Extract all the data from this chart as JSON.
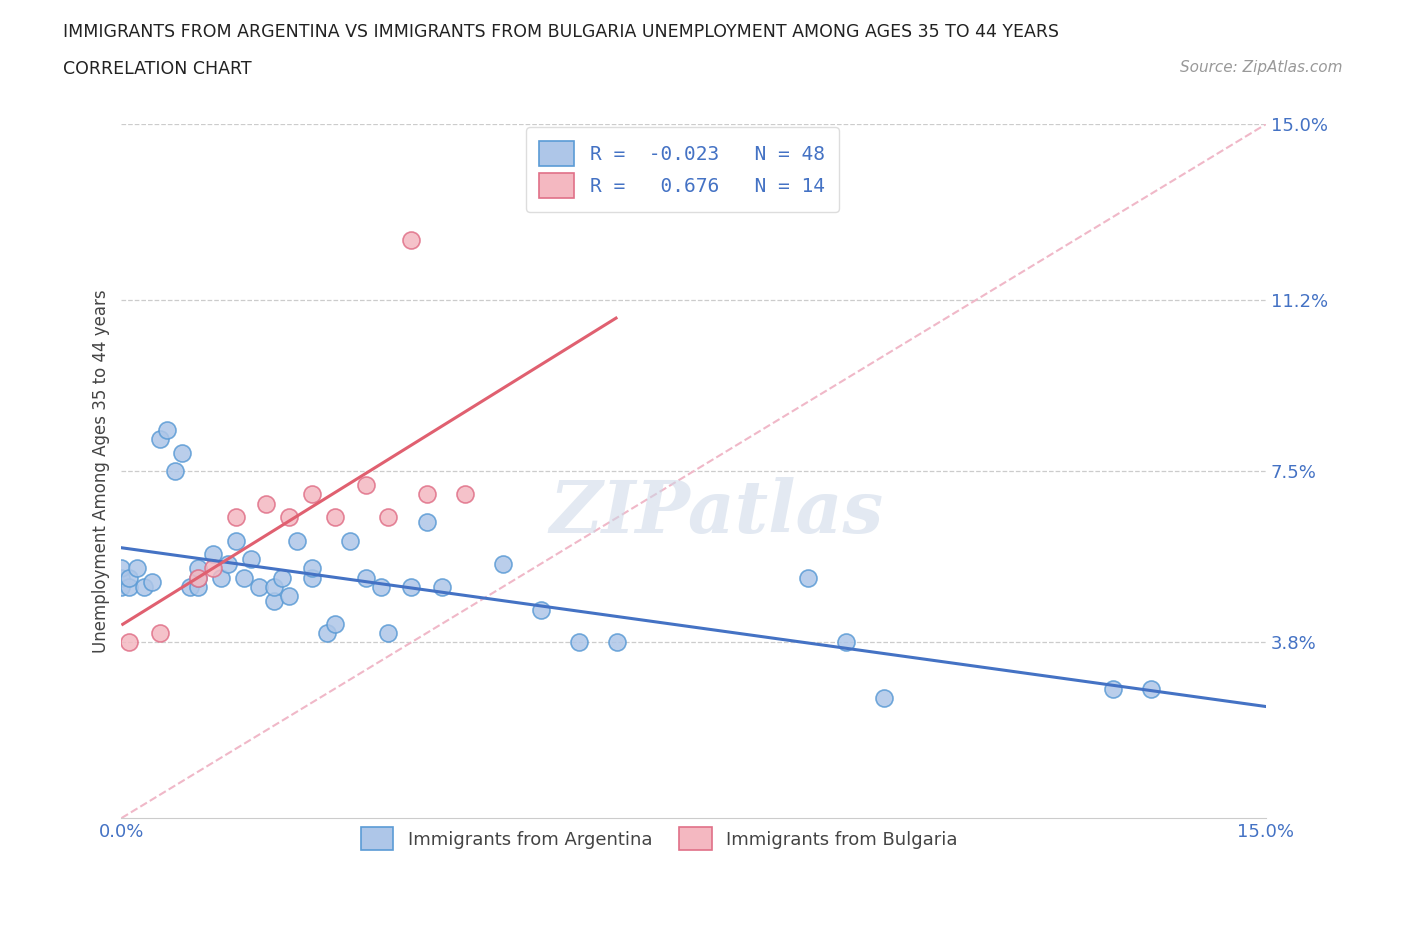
{
  "title_line1": "IMMIGRANTS FROM ARGENTINA VS IMMIGRANTS FROM BULGARIA UNEMPLOYMENT AMONG AGES 35 TO 44 YEARS",
  "title_line2": "CORRELATION CHART",
  "source_text": "Source: ZipAtlas.com",
  "ylabel": "Unemployment Among Ages 35 to 44 years",
  "xmin": 0.0,
  "xmax": 0.15,
  "ymin": 0.0,
  "ymax": 0.15,
  "yticks": [
    0.038,
    0.075,
    0.112,
    0.15
  ],
  "ytick_labels": [
    "3.8%",
    "7.5%",
    "11.2%",
    "15.0%"
  ],
  "xtick_labels": [
    "0.0%",
    "15.0%"
  ],
  "xticks": [
    0.0,
    0.15
  ],
  "argentina_color": "#aec6e8",
  "argentina_edge": "#5b9bd5",
  "bulgaria_color": "#f4b8c1",
  "bulgaria_edge": "#e07088",
  "argentina_R": -0.023,
  "argentina_N": 48,
  "bulgaria_R": 0.676,
  "bulgaria_N": 14,
  "argentina_trend_color": "#4472c4",
  "bulgaria_trend_color": "#e06070",
  "diagonal_color": "#f0b8c8",
  "watermark": "ZIPatlas",
  "argentina_label": "Immigrants from Argentina",
  "bulgaria_label": "Immigrants from Bulgaria",
  "argentina_x": [
    0.0,
    0.0,
    0.0,
    0.001,
    0.001,
    0.002,
    0.003,
    0.004,
    0.005,
    0.006,
    0.007,
    0.008,
    0.009,
    0.01,
    0.01,
    0.01,
    0.012,
    0.013,
    0.014,
    0.015,
    0.016,
    0.017,
    0.018,
    0.02,
    0.02,
    0.021,
    0.022,
    0.023,
    0.025,
    0.025,
    0.027,
    0.028,
    0.03,
    0.032,
    0.034,
    0.035,
    0.038,
    0.04,
    0.042,
    0.05,
    0.055,
    0.06,
    0.065,
    0.09,
    0.095,
    0.1,
    0.13,
    0.135
  ],
  "argentina_y": [
    0.05,
    0.052,
    0.054,
    0.05,
    0.052,
    0.054,
    0.05,
    0.051,
    0.082,
    0.084,
    0.075,
    0.079,
    0.05,
    0.05,
    0.052,
    0.054,
    0.057,
    0.052,
    0.055,
    0.06,
    0.052,
    0.056,
    0.05,
    0.047,
    0.05,
    0.052,
    0.048,
    0.06,
    0.052,
    0.054,
    0.04,
    0.042,
    0.06,
    0.052,
    0.05,
    0.04,
    0.05,
    0.064,
    0.05,
    0.055,
    0.045,
    0.038,
    0.038,
    0.052,
    0.038,
    0.026,
    0.028,
    0.028
  ],
  "bulgaria_x": [
    0.001,
    0.005,
    0.01,
    0.012,
    0.015,
    0.019,
    0.022,
    0.025,
    0.028,
    0.032,
    0.035,
    0.038,
    0.04,
    0.045
  ],
  "bulgaria_y": [
    0.038,
    0.04,
    0.052,
    0.054,
    0.065,
    0.068,
    0.065,
    0.07,
    0.065,
    0.072,
    0.065,
    0.125,
    0.07,
    0.07
  ]
}
